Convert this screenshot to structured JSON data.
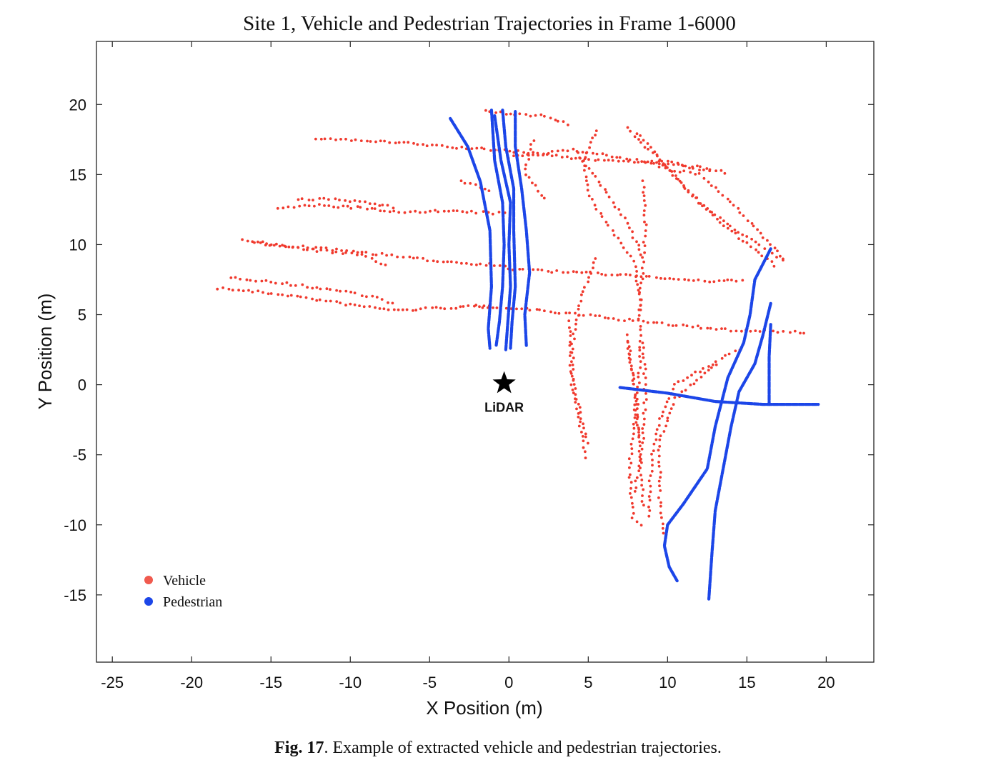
{
  "chart_data": {
    "type": "scatter",
    "title": "Site 1, Vehicle and Pedestrian Trajectories in Frame 1-6000",
    "xlabel": "X Position (m)",
    "ylabel": "Y Position (m)",
    "xlim": [
      -26,
      23
    ],
    "ylim": [
      -19.8,
      24.5
    ],
    "xticks": [
      -25,
      -20,
      -15,
      -10,
      -5,
      0,
      5,
      10,
      15,
      20
    ],
    "yticks": [
      -15,
      -10,
      -5,
      0,
      5,
      10,
      15,
      20
    ],
    "xtick_labels": [
      "-25",
      "-20",
      "-15",
      "-10",
      "-5",
      "0",
      "5",
      "10",
      "15",
      "20"
    ],
    "ytick_labels": [
      "-15",
      "-10",
      "-5",
      "0",
      "5",
      "10",
      "15",
      "20"
    ],
    "grid": false,
    "legend_position": "bottom-left",
    "annotation": {
      "label": "LiDAR",
      "x": -0.3,
      "y": 0.1
    },
    "series": [
      {
        "name": "Vehicle",
        "color": "#f03a2e",
        "style": "dots",
        "tracks": [
          [
            [
              -18.3,
              6.9
            ],
            [
              -14,
              6.4
            ],
            [
              -10,
              5.7
            ],
            [
              -7,
              5.3
            ],
            [
              -4,
              5.5
            ],
            [
              -1,
              5.6
            ]
          ],
          [
            [
              -17.5,
              7.7
            ],
            [
              -14,
              7.2
            ],
            [
              -10,
              6.6
            ],
            [
              -8,
              6.1
            ],
            [
              -7,
              5.6
            ]
          ],
          [
            [
              -16.8,
              10.3
            ],
            [
              -14,
              9.9
            ],
            [
              -10.5,
              9.6
            ],
            [
              -8,
              9.3
            ],
            [
              -6,
              9.0
            ],
            [
              -3,
              8.7
            ],
            [
              0,
              8.5
            ]
          ],
          [
            [
              -16,
              10.1
            ],
            [
              -13,
              9.7
            ],
            [
              -9,
              9.2
            ],
            [
              -7.5,
              8.3
            ]
          ],
          [
            [
              -14.5,
              12.6
            ],
            [
              -12,
              12.8
            ],
            [
              -9,
              12.6
            ],
            [
              -7.5,
              12.3
            ],
            [
              -5,
              12.4
            ],
            [
              -2,
              12.3
            ],
            [
              0,
              12.2
            ]
          ],
          [
            [
              -13.3,
              13.2
            ],
            [
              -11,
              13.3
            ],
            [
              -8.5,
              12.9
            ],
            [
              -7,
              12.6
            ]
          ],
          [
            [
              -12.2,
              17.6
            ],
            [
              -9,
              17.4
            ],
            [
              -6,
              17.2
            ],
            [
              -3,
              16.9
            ],
            [
              0,
              16.7
            ],
            [
              3,
              16.3
            ],
            [
              6,
              16.0
            ],
            [
              10,
              15.9
            ],
            [
              13,
              15.3
            ],
            [
              14,
              15.0
            ]
          ],
          [
            [
              -1.5,
              19.5
            ],
            [
              2,
              19.2
            ],
            [
              4,
              18.5
            ]
          ],
          [
            [
              -3,
              14.5
            ],
            [
              -1,
              13.8
            ]
          ],
          [
            [
              0,
              16.2
            ],
            [
              4,
              16.8
            ],
            [
              8,
              16.0
            ],
            [
              11,
              15.6
            ],
            [
              13,
              15.1
            ]
          ],
          [
            [
              0,
              8.3
            ],
            [
              4,
              8.0
            ],
            [
              8,
              7.8
            ],
            [
              12,
              7.4
            ],
            [
              15,
              7.4
            ]
          ],
          [
            [
              -2,
              5.6
            ],
            [
              2,
              5.3
            ],
            [
              6,
              4.8
            ],
            [
              10,
              4.3
            ],
            [
              14,
              3.9
            ],
            [
              17,
              3.8
            ],
            [
              19,
              3.7
            ]
          ],
          [
            [
              7.5,
              18.3
            ],
            [
              9.5,
              16
            ],
            [
              12,
              13
            ],
            [
              15,
              10.5
            ],
            [
              17.5,
              8.8
            ]
          ],
          [
            [
              8,
              18
            ],
            [
              10,
              15.5
            ],
            [
              12,
              13
            ],
            [
              14.5,
              10.5
            ],
            [
              17,
              8.3
            ]
          ],
          [
            [
              5.5,
              18.2
            ],
            [
              4.7,
              16
            ],
            [
              5,
              13.5
            ],
            [
              6.5,
              11
            ],
            [
              8,
              8.5
            ],
            [
              8.3,
              5
            ]
          ],
          [
            [
              4.3,
              16.5
            ],
            [
              6,
              14
            ],
            [
              7.5,
              11.5
            ],
            [
              8.5,
              9
            ]
          ],
          [
            [
              1.5,
              17.5
            ],
            [
              1,
              15
            ],
            [
              2.5,
              13
            ]
          ],
          [
            [
              8.5,
              14.5
            ],
            [
              8.6,
              11
            ],
            [
              8.4,
              8
            ],
            [
              8.2,
              5
            ],
            [
              8.3,
              2
            ],
            [
              8.1,
              -1
            ],
            [
              8.2,
              -4
            ]
          ],
          [
            [
              7.5,
              3.5
            ],
            [
              7.9,
              0
            ],
            [
              8.1,
              -3
            ],
            [
              8.3,
              -5.5
            ],
            [
              7.8,
              -8
            ]
          ],
          [
            [
              5.5,
              9.0
            ],
            [
              4.5,
              6
            ],
            [
              4,
              3
            ],
            [
              4,
              0
            ],
            [
              4.5,
              -3
            ],
            [
              4.9,
              -5.5
            ]
          ],
          [
            [
              3.8,
              4.5
            ],
            [
              3.9,
              1
            ],
            [
              4.5,
              -2
            ],
            [
              5,
              -4.5
            ]
          ],
          [
            [
              7.5,
              3.0
            ],
            [
              8.0,
              -1.0
            ],
            [
              7.6,
              -6.0
            ],
            [
              7.8,
              -9.5
            ],
            [
              8.5,
              -10.2
            ]
          ],
          [
            [
              8.5,
              3.0
            ],
            [
              8.6,
              -1.0
            ],
            [
              8.3,
              -6.0
            ],
            [
              8.5,
              -9.0
            ]
          ],
          [
            [
              14.5,
              2.5
            ],
            [
              12,
              1.0
            ],
            [
              10.5,
              0.0
            ],
            [
              9.5,
              -2.5
            ],
            [
              9,
              -5
            ],
            [
              8.8,
              -9.8
            ]
          ],
          [
            [
              13,
              1.5
            ],
            [
              10.5,
              -1
            ],
            [
              9.5,
              -4
            ],
            [
              9.5,
              -8
            ],
            [
              9.8,
              -11
            ]
          ],
          [
            [
              9.5,
              15.5
            ],
            [
              12,
              15.0
            ],
            [
              14,
              13
            ],
            [
              16.5,
              10
            ],
            [
              17.5,
              8.7
            ]
          ]
        ]
      },
      {
        "name": "Pedestrian",
        "color": "#1c46e8",
        "style": "lines",
        "tracks": [
          [
            [
              -3.7,
              19.0
            ],
            [
              -2.6,
              17
            ],
            [
              -1.8,
              14.5
            ],
            [
              -1.2,
              11
            ],
            [
              -1.1,
              7
            ],
            [
              -1.3,
              4
            ],
            [
              -1.2,
              2.6
            ]
          ],
          [
            [
              -1.1,
              19.6
            ],
            [
              -0.9,
              16
            ],
            [
              -0.4,
              13
            ],
            [
              -0.3,
              10
            ],
            [
              -0.4,
              7
            ],
            [
              -0.6,
              4.5
            ],
            [
              -0.8,
              2.8
            ]
          ],
          [
            [
              -0.9,
              19.2
            ],
            [
              -0.5,
              16
            ],
            [
              0.1,
              13
            ],
            [
              0.0,
              10
            ],
            [
              0.1,
              7
            ],
            [
              -0.1,
              4
            ],
            [
              -0.2,
              2.5
            ]
          ],
          [
            [
              -0.4,
              19.6
            ],
            [
              -0.2,
              17
            ],
            [
              0.3,
              14
            ],
            [
              0.3,
              11
            ],
            [
              0.4,
              7
            ],
            [
              0.2,
              4.5
            ],
            [
              0.1,
              2.6
            ]
          ],
          [
            [
              0.4,
              19.5
            ],
            [
              0.4,
              17
            ],
            [
              0.8,
              14
            ],
            [
              1.1,
              11
            ],
            [
              1.3,
              8
            ],
            [
              1.0,
              5
            ],
            [
              1.1,
              2.8
            ]
          ],
          [
            [
              7.0,
              -0.2
            ],
            [
              10,
              -0.6
            ],
            [
              13,
              -1.2
            ],
            [
              16,
              -1.4
            ],
            [
              19.5,
              -1.4
            ]
          ],
          [
            [
              16.5,
              9.7
            ],
            [
              15.5,
              7.5
            ],
            [
              15.2,
              5
            ],
            [
              14.8,
              3
            ],
            [
              13.8,
              0.5
            ],
            [
              13.0,
              -3
            ],
            [
              12.5,
              -6
            ],
            [
              11,
              -8.5
            ],
            [
              10.0,
              -10
            ],
            [
              9.8,
              -11.5
            ],
            [
              10.1,
              -13
            ],
            [
              10.6,
              -14
            ]
          ],
          [
            [
              16.5,
              5.8
            ],
            [
              16.0,
              3.5
            ],
            [
              15.5,
              1.5
            ],
            [
              14.5,
              -0.5
            ],
            [
              14.0,
              -3
            ],
            [
              13.5,
              -6
            ],
            [
              13.0,
              -9
            ],
            [
              12.8,
              -12
            ],
            [
              12.6,
              -15.3
            ]
          ],
          [
            [
              16.5,
              4.3
            ],
            [
              16.4,
              2
            ],
            [
              16.4,
              -1.4
            ]
          ]
        ]
      }
    ]
  },
  "caption": {
    "fig_no": "Fig. 17",
    "text": ". Example of extracted vehicle and pedestrian trajectories."
  }
}
